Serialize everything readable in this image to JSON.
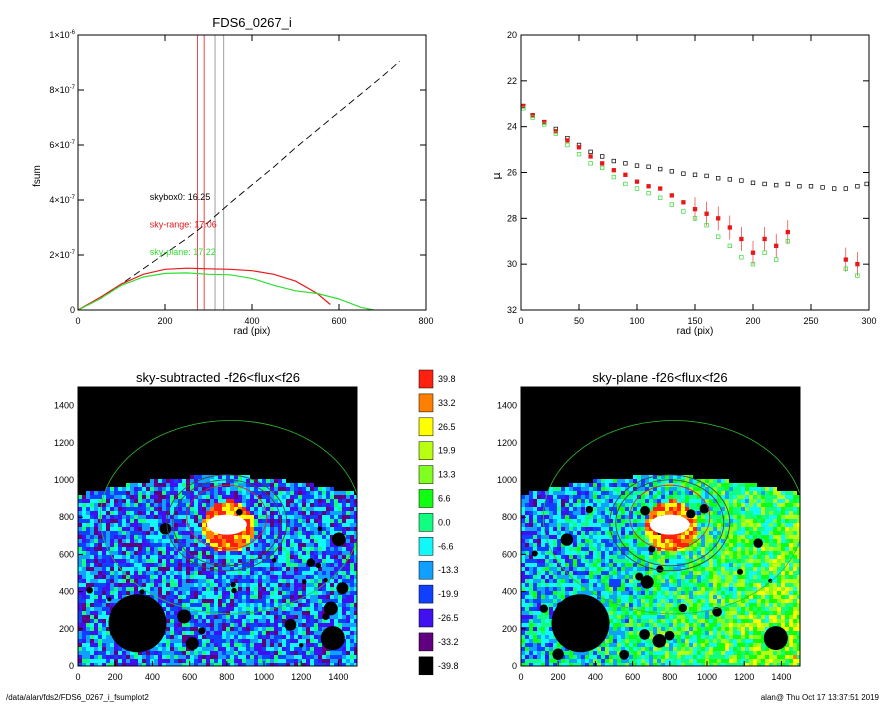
{
  "footer": {
    "path": "/data/alan/fds2/FDS6_0267_i_fsumplot2",
    "user_time": "alan@  Thu Oct 17 13:37:51 2019"
  },
  "colors": {
    "black": "#000000",
    "red": "#e8181a",
    "green": "#33dd33",
    "gray": "#888888"
  },
  "chart_data": [
    {
      "id": "fsum",
      "type": "line",
      "title": "FDS6_0267_i",
      "xlabel": "rad (pix)",
      "ylabel": "fsum",
      "xlim": [
        0,
        800
      ],
      "ylim": [
        0,
        1e-06
      ],
      "x_ticks": [
        0,
        200,
        400,
        600,
        800
      ],
      "y_ticks": [
        {
          "v": 0,
          "label": "0"
        },
        {
          "v": 2e-07,
          "label": "2×10-7"
        },
        {
          "v": 4e-07,
          "label": "4×10-7"
        },
        {
          "v": 6e-07,
          "label": "6×10-7"
        },
        {
          "v": 8e-07,
          "label": "8×10-7"
        },
        {
          "v": 1e-06,
          "label": "1×10-6"
        }
      ],
      "vlines": [
        {
          "x": 275,
          "color": "red"
        },
        {
          "x": 290,
          "color": "red"
        },
        {
          "x": 315,
          "color": "gray"
        },
        {
          "x": 335,
          "color": "gray"
        }
      ],
      "annotations": [
        {
          "text": "skybox0: 16.25",
          "color": "black",
          "x": 165,
          "y": 4e-07
        },
        {
          "text": "sky-range: 17.06",
          "color": "red",
          "x": 165,
          "y": 3e-07
        },
        {
          "text": "sky-plane: 17.22",
          "color": "green",
          "x": 165,
          "y": 2e-07
        }
      ],
      "series": [
        {
          "style": "dashed",
          "color": "black",
          "x": [
            0,
            50,
            100,
            150,
            200,
            250,
            300,
            350,
            400,
            450,
            500,
            550,
            600,
            650,
            700,
            740
          ],
          "y": [
            0,
            4e-08,
            9.5e-08,
            1.5e-07,
            2.05e-07,
            2.6e-07,
            3.2e-07,
            3.9e-07,
            4.55e-07,
            5.2e-07,
            5.9e-07,
            6.55e-07,
            7.2e-07,
            7.85e-07,
            8.5e-07,
            9.05e-07
          ]
        },
        {
          "style": "solid",
          "color": "red",
          "x": [
            0,
            50,
            100,
            150,
            200,
            250,
            300,
            350,
            400,
            450,
            500,
            550,
            580
          ],
          "y": [
            0,
            4.5e-08,
            9.5e-08,
            1.3e-07,
            1.48e-07,
            1.52e-07,
            1.5e-07,
            1.48e-07,
            1.43e-07,
            1.3e-07,
            1.05e-07,
            6e-08,
            2e-08
          ]
        },
        {
          "style": "solid",
          "color": "green",
          "x": [
            0,
            50,
            100,
            150,
            200,
            250,
            300,
            350,
            400,
            450,
            500,
            550,
            600,
            650,
            680
          ],
          "y": [
            0,
            4e-08,
            9e-08,
            1.2e-07,
            1.33e-07,
            1.35e-07,
            1.3e-07,
            1.28e-07,
            1.15e-07,
            9e-08,
            7e-08,
            6e-08,
            4e-08,
            1e-08,
            0
          ]
        }
      ]
    },
    {
      "id": "mu",
      "type": "scatter",
      "xlabel": "rad (pix)",
      "ylabel": "μ",
      "xlim": [
        0,
        300
      ],
      "ylim": [
        32,
        20
      ],
      "x_ticks": [
        0,
        50,
        100,
        150,
        200,
        250,
        300
      ],
      "y_ticks": [
        20,
        22,
        24,
        26,
        28,
        30,
        32
      ],
      "series": [
        {
          "marker": "open-square",
          "color": "black",
          "x": [
            2,
            10,
            20,
            30,
            40,
            50,
            60,
            70,
            80,
            90,
            100,
            110,
            120,
            130,
            140,
            150,
            160,
            170,
            180,
            190,
            200,
            210,
            220,
            230,
            240,
            250,
            260,
            270,
            280,
            290,
            298
          ],
          "y": [
            23.1,
            23.5,
            23.8,
            24.1,
            24.5,
            24.8,
            25.1,
            25.3,
            25.5,
            25.6,
            25.7,
            25.75,
            25.85,
            25.95,
            26.05,
            26.1,
            26.15,
            26.25,
            26.3,
            26.35,
            26.45,
            26.5,
            26.55,
            26.5,
            26.6,
            26.6,
            26.65,
            26.7,
            26.7,
            26.6,
            26.5
          ]
        },
        {
          "marker": "filled-square",
          "color": "red",
          "x": [
            2,
            10,
            20,
            30,
            40,
            50,
            60,
            70,
            80,
            90,
            100,
            110,
            120,
            130,
            140,
            150,
            160,
            170,
            180,
            190,
            200,
            210,
            220,
            230,
            280,
            290
          ],
          "y": [
            23.1,
            23.5,
            23.8,
            24.2,
            24.6,
            24.9,
            25.3,
            25.6,
            25.9,
            26.1,
            26.4,
            26.6,
            26.7,
            27.0,
            27.3,
            27.6,
            27.8,
            28.0,
            28.4,
            28.9,
            29.5,
            28.9,
            29.2,
            28.6,
            29.8,
            30.0
          ]
        },
        {
          "marker": "open-square",
          "color": "green",
          "x": [
            2,
            10,
            20,
            30,
            40,
            50,
            60,
            70,
            80,
            90,
            100,
            110,
            120,
            130,
            140,
            150,
            160,
            170,
            180,
            190,
            200,
            210,
            220,
            230,
            280,
            290
          ],
          "y": [
            23.2,
            23.6,
            23.9,
            24.3,
            24.8,
            25.2,
            25.6,
            25.8,
            26.2,
            26.5,
            26.7,
            26.9,
            27.1,
            27.4,
            27.7,
            28.0,
            28.3,
            28.8,
            29.2,
            29.7,
            30.0,
            29.5,
            29.8,
            29.0,
            30.2,
            30.5
          ]
        }
      ]
    },
    {
      "id": "img1",
      "type": "heatmap",
      "title": "sky-subtracted -f26<flux<f26",
      "xlim": [
        0,
        1500
      ],
      "ylim": [
        0,
        1500
      ],
      "x_ticks": [
        0,
        200,
        400,
        600,
        800,
        1000,
        1200,
        1400
      ],
      "y_ticks": [
        0,
        200,
        400,
        600,
        800,
        1000,
        1200,
        1400
      ]
    },
    {
      "id": "img2",
      "type": "heatmap",
      "title": "sky-plane -f26<flux<f26",
      "xlim": [
        0,
        1500
      ],
      "ylim": [
        0,
        1500
      ],
      "x_ticks": [
        0,
        200,
        400,
        600,
        800,
        1000,
        1200,
        1400
      ],
      "y_ticks": [
        0,
        200,
        400,
        600,
        800,
        1000,
        1200,
        1400
      ]
    },
    {
      "id": "colorbar",
      "type": "table",
      "levels": [
        {
          "label": "39.8",
          "color": "#ff2010"
        },
        {
          "label": "33.2",
          "color": "#ff7f00"
        },
        {
          "label": "26.5",
          "color": "#ffff00"
        },
        {
          "label": "19.9",
          "color": "#b8ff10"
        },
        {
          "label": "13.3",
          "color": "#80ff20"
        },
        {
          "label": "6.6",
          "color": "#10ff10"
        },
        {
          "label": "0.0",
          "color": "#10ff80"
        },
        {
          "label": "-6.6",
          "color": "#10f8f8"
        },
        {
          "label": "-13.3",
          "color": "#10a0ff"
        },
        {
          "label": "-19.9",
          "color": "#1040ff"
        },
        {
          "label": "-26.5",
          "color": "#4010f0"
        },
        {
          "label": "-33.2",
          "color": "#600080"
        },
        {
          "label": "-39.8",
          "color": "#000000"
        }
      ]
    }
  ]
}
